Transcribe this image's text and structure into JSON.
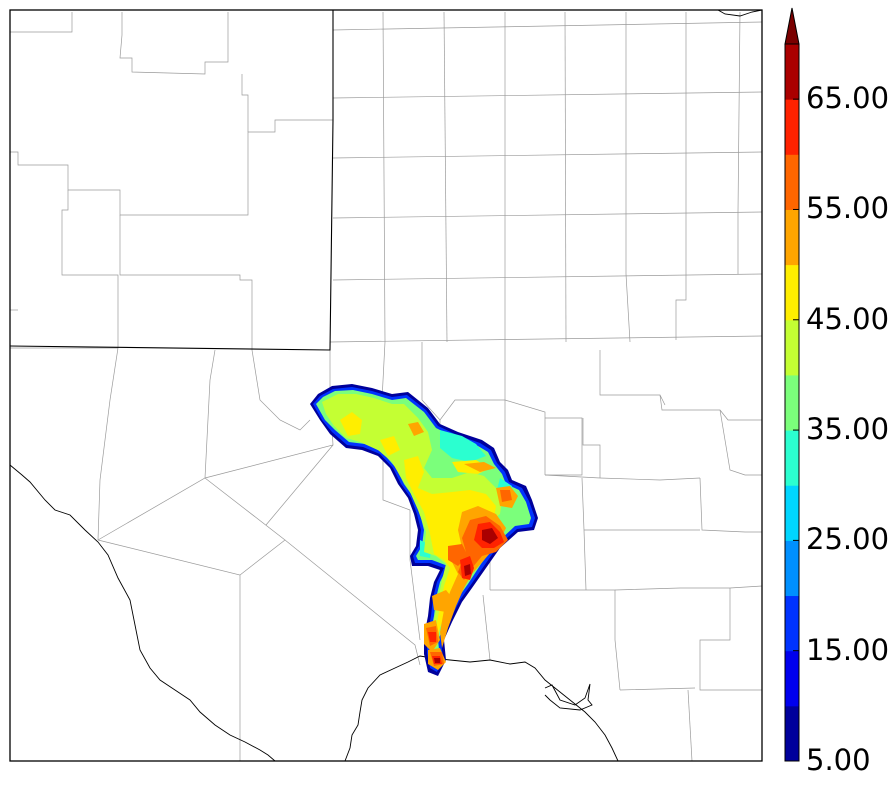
{
  "colorbar": {
    "ticks": [
      "5.00",
      "15.00",
      "25.00",
      "35.00",
      "45.00",
      "55.00",
      "65.00"
    ],
    "min": 5,
    "max": 70,
    "step": 5,
    "extend": "max",
    "colors": [
      "#00009b",
      "#0000ee",
      "#0033ff",
      "#0090ff",
      "#00d6ff",
      "#2bffd0",
      "#7bff7b",
      "#c4ff33",
      "#ffee00",
      "#ffa500",
      "#ff6600",
      "#ff2200",
      "#aa0000",
      "#7a0000"
    ]
  },
  "map": {
    "background": "#ffffff",
    "county_line_color": "#9a9a9a",
    "state_line_color": "#000000",
    "coast_line_color": "#000000"
  }
}
